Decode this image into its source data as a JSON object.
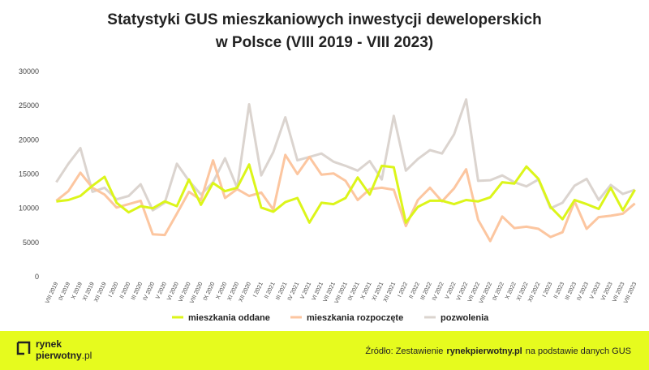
{
  "chart_data": {
    "type": "line",
    "title": [
      "Statystyki GUS mieszkaniowych inwestycji deweloperskich",
      "w Polsce (VIII 2019 - VIII 2023)"
    ],
    "categories": [
      "VIII 2019",
      "IX 2019",
      "X 2019",
      "XI 2019",
      "XII 2019",
      "I 2020",
      "II 2020",
      "III 2020",
      "IV 2020",
      "V 2020",
      "VI 2020",
      "VII 2020",
      "VIII 2020",
      "IX 2020",
      "X 2020",
      "XI 2020",
      "XII 2020",
      "I 2021",
      "II 2021",
      "III 2021",
      "IV 2021",
      "V 2021",
      "VI 2021",
      "VII 2021",
      "VIII 2021",
      "IX 2021",
      "X 2021",
      "XI 2021",
      "XII 2021",
      "I 2022",
      "II 2022",
      "III 2022",
      "IV 2022",
      "V 2022",
      "VI 2022",
      "VII 2022",
      "VIII 2022",
      "IX 2022",
      "X 2022",
      "XI 2022",
      "XII 2022",
      "I 2023",
      "II 2023",
      "III 2023",
      "IV 2023",
      "V 2023",
      "VI 2023",
      "VII 2023",
      "VIII 2023"
    ],
    "series": [
      {
        "name": "mieszkania oddane",
        "color": "#dcf51a",
        "values": [
          11000,
          11200,
          11800,
          13300,
          14600,
          10800,
          9400,
          10300,
          10000,
          11000,
          10300,
          14200,
          10500,
          13700,
          12500,
          13000,
          16400,
          10100,
          9500,
          10900,
          11500,
          7900,
          10800,
          10600,
          11500,
          14500,
          12000,
          16200,
          16000,
          7900,
          10200,
          11100,
          11100,
          10600,
          11200,
          11000,
          11600,
          13800,
          13600,
          16100,
          14300,
          10200,
          8400,
          11200,
          10600,
          9900,
          13000,
          9700,
          12700
        ]
      },
      {
        "name": "mieszkania rozpoczęte",
        "color": "#fcc6a0",
        "values": [
          11100,
          12500,
          15200,
          13000,
          12000,
          10100,
          10600,
          11100,
          6200,
          6100,
          9200,
          12400,
          11200,
          17000,
          11500,
          12800,
          11800,
          12300,
          9800,
          17800,
          15000,
          17500,
          14900,
          15100,
          14000,
          11200,
          12800,
          13000,
          12700,
          7400,
          11200,
          13000,
          11000,
          12900,
          15700,
          8300,
          5200,
          8800,
          7100,
          7300,
          7000,
          5800,
          6500,
          11000,
          7000,
          8700,
          8900,
          9200,
          10700
        ]
      },
      {
        "name": "pozwolenia",
        "color": "#dbd4cf",
        "values": [
          13800,
          16500,
          18800,
          12400,
          13000,
          11300,
          11800,
          13500,
          9700,
          10800,
          16500,
          14000,
          12000,
          13800,
          17300,
          13000,
          25200,
          14800,
          18200,
          23300,
          17000,
          17500,
          18000,
          16800,
          16200,
          15500,
          16900,
          14200,
          23500,
          15500,
          17200,
          18500,
          18000,
          20800,
          25900,
          14000,
          14100,
          14800,
          13800,
          13200,
          14200,
          10000,
          10800,
          13300,
          14300,
          11200,
          13400,
          12100,
          12700
        ]
      }
    ],
    "ylim": [
      0,
      30000
    ],
    "yticks": [
      0,
      5000,
      10000,
      15000,
      20000,
      25000,
      30000
    ],
    "grid": false,
    "legend": "bottom"
  },
  "footer": {
    "logo": [
      "rynek",
      "pierwotny",
      ".pl"
    ],
    "source": [
      "Źródło: Zestawienie",
      "rynekpierwotny.pl",
      "na podstawie danych GUS"
    ]
  }
}
